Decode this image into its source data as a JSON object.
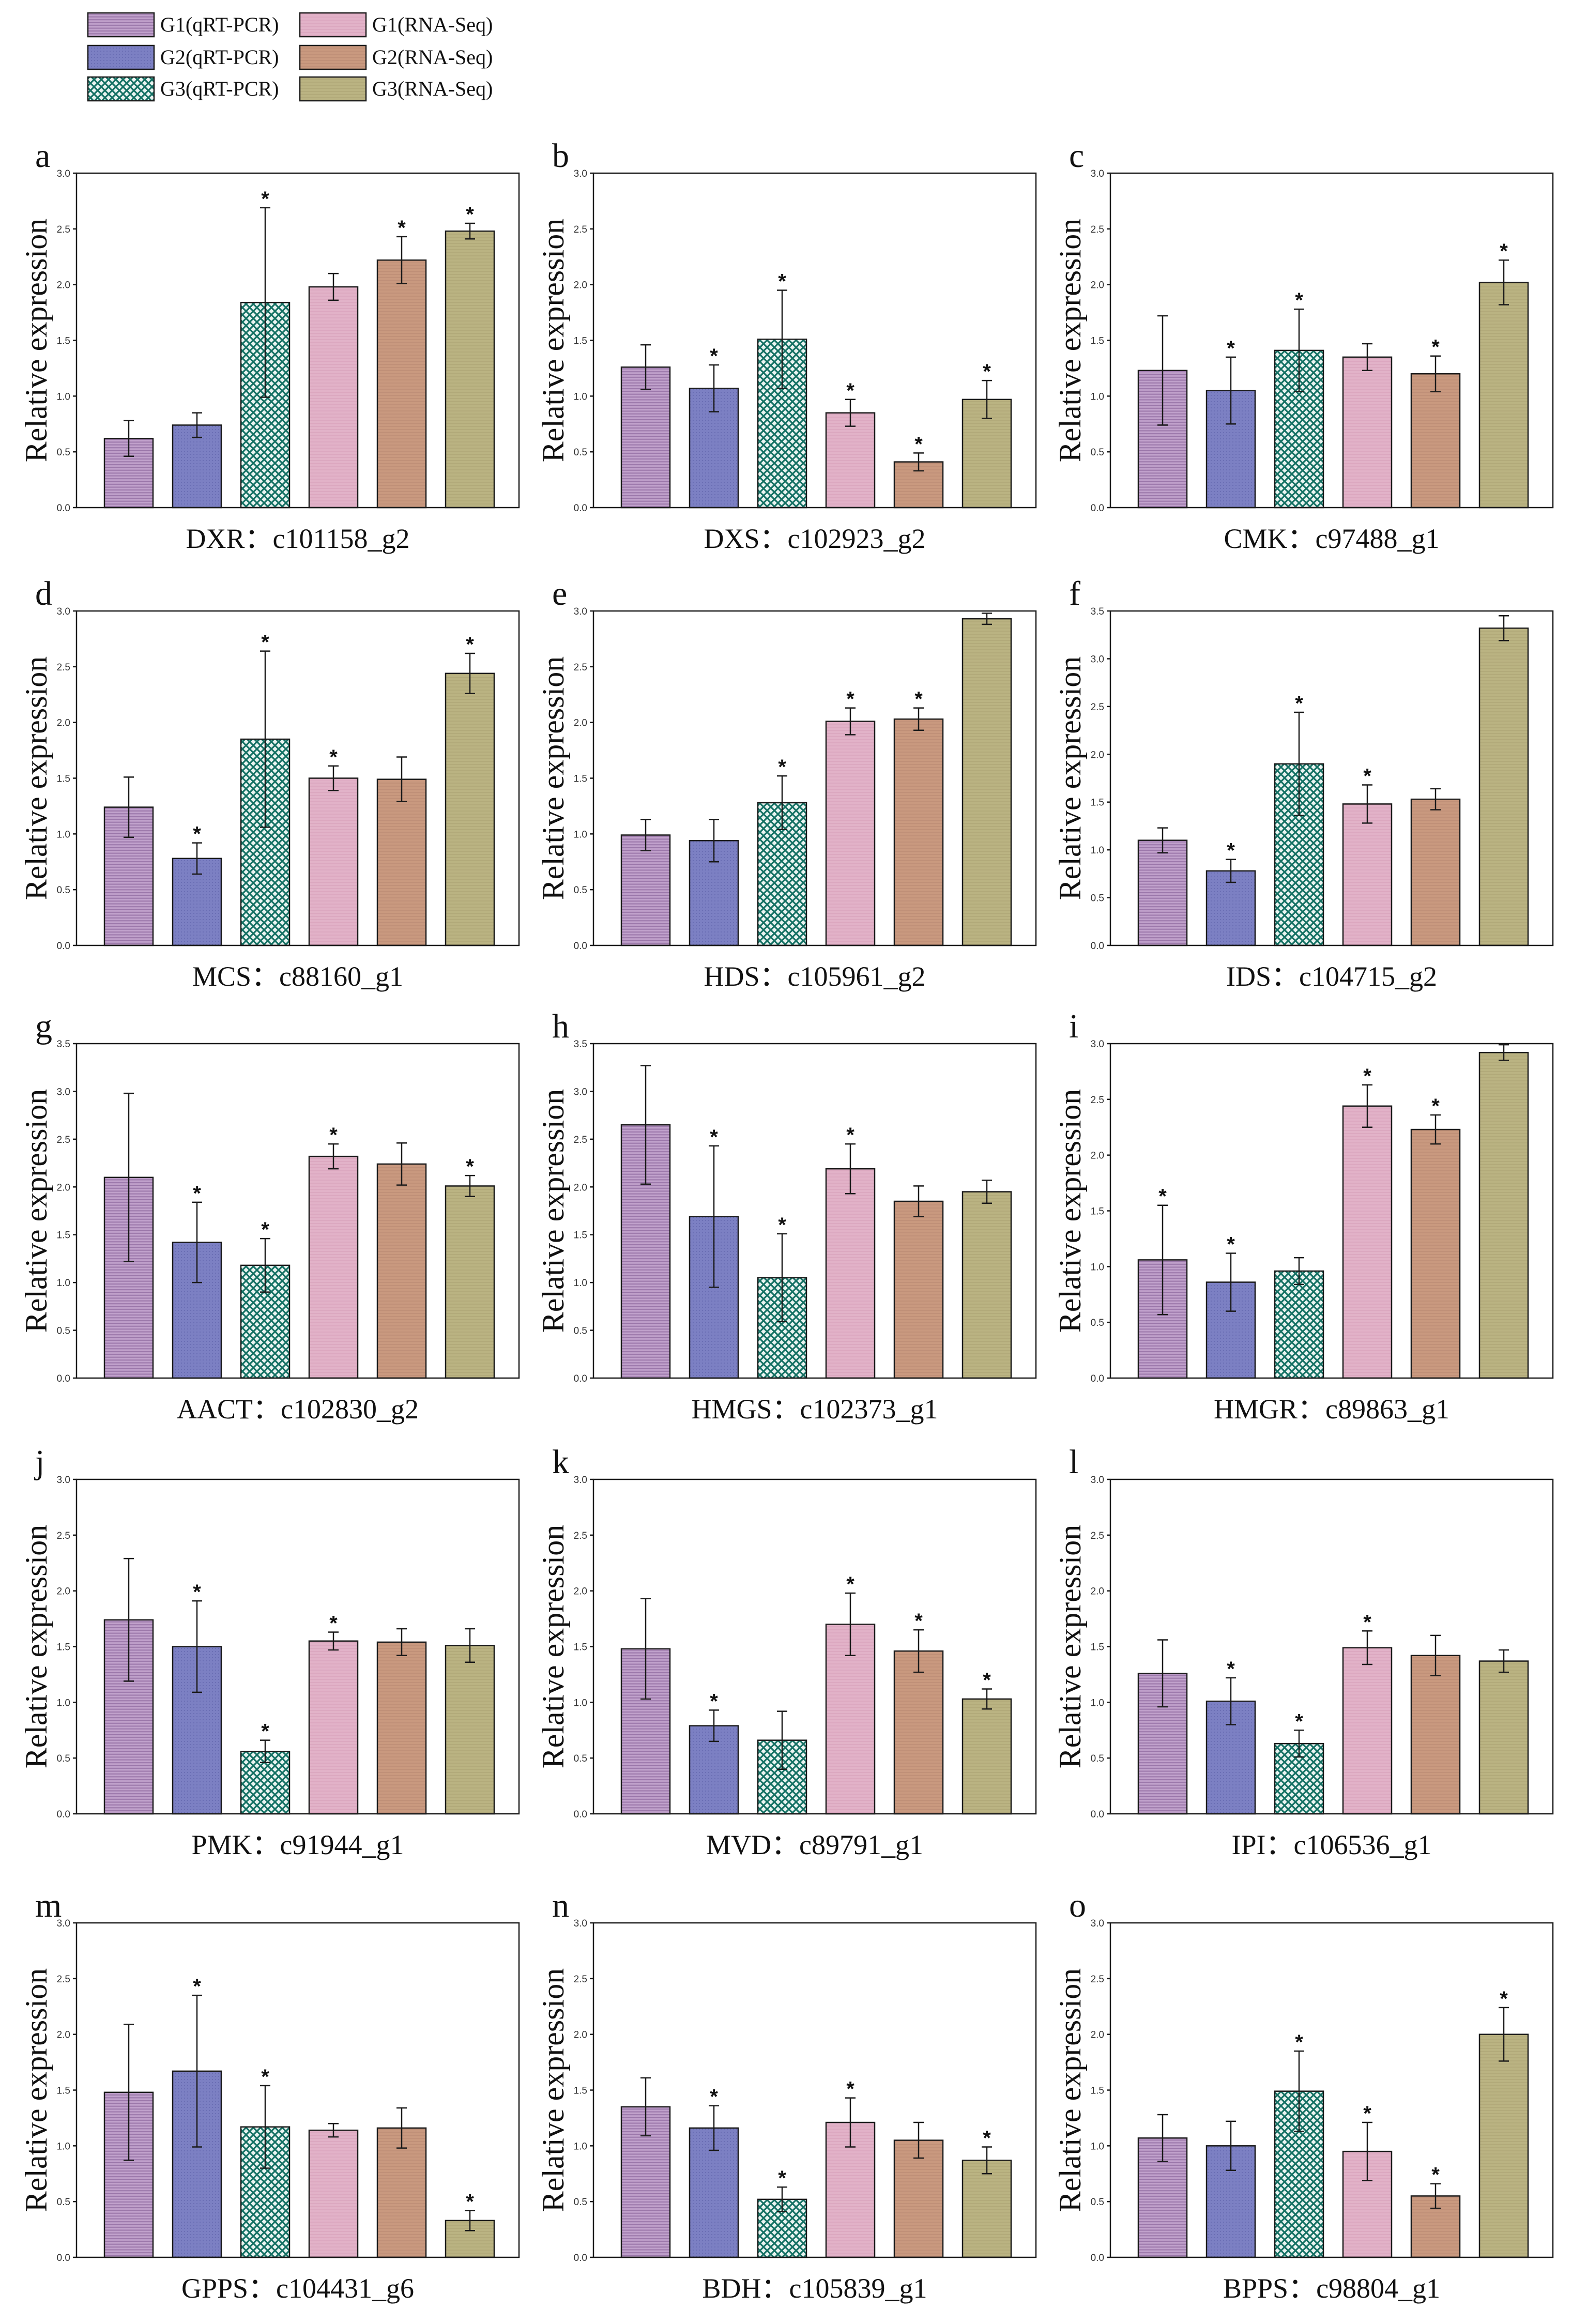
{
  "figure": {
    "ylabel": "Relative expression",
    "legend": [
      {
        "label": "G1(qRT-PCR)",
        "pattern": "p-g1q"
      },
      {
        "label": "G1(RNA-Seq)",
        "pattern": "p-g1r"
      },
      {
        "label": "G2(qRT-PCR)",
        "pattern": "p-g2q"
      },
      {
        "label": "G2(RNA-Seq)",
        "pattern": "p-g2r"
      },
      {
        "label": "G3(qRT-PCR)",
        "pattern": "p-g3q"
      },
      {
        "label": "G3(RNA-Seq)",
        "pattern": "p-g3r"
      }
    ],
    "colors": {
      "g1q": "#b08cbc",
      "g2q": "#7b7fc2",
      "g3q": "#1a7a6e",
      "g1r": "#dca6c0",
      "g2r": "#c8967c",
      "g3r": "#b7b07e"
    },
    "significance_marker": "*"
  },
  "chart_data": [
    {
      "type": "bar",
      "letter": "a",
      "title": "DXR：c101158_g2",
      "ylim": [
        0,
        3.0
      ],
      "yticks": [
        "0.0",
        "0.5",
        "1.0",
        "1.5",
        "2.0",
        "2.5",
        "3.0"
      ],
      "categories": [
        "G1(qRT-PCR)",
        "G2(qRT-PCR)",
        "G3(qRT-PCR)",
        "G1(RNA-Seq)",
        "G2(RNA-Seq)",
        "G3(RNA-Seq)"
      ],
      "values": [
        0.62,
        0.74,
        1.84,
        1.98,
        2.22,
        2.48
      ],
      "errors": [
        0.16,
        0.11,
        0.85,
        0.12,
        0.21,
        0.07
      ],
      "significant": [
        false,
        false,
        true,
        false,
        true,
        true
      ]
    },
    {
      "type": "bar",
      "letter": "b",
      "title": "DXS：c102923_g2",
      "ylim": [
        0,
        3.0
      ],
      "yticks": [
        "0.0",
        "0.5",
        "1.0",
        "1.5",
        "2.0",
        "2.5",
        "3.0"
      ],
      "categories": [
        "G1(qRT-PCR)",
        "G2(qRT-PCR)",
        "G3(qRT-PCR)",
        "G1(RNA-Seq)",
        "G2(RNA-Seq)",
        "G3(RNA-Seq)"
      ],
      "values": [
        1.26,
        1.07,
        1.51,
        0.85,
        0.41,
        0.97
      ],
      "errors": [
        0.2,
        0.21,
        0.44,
        0.12,
        0.08,
        0.17
      ],
      "significant": [
        false,
        true,
        true,
        true,
        true,
        true
      ]
    },
    {
      "type": "bar",
      "letter": "c",
      "title": "CMK：c97488_g1",
      "ylim": [
        0,
        3.0
      ],
      "yticks": [
        "0.0",
        "0.5",
        "1.0",
        "1.5",
        "2.0",
        "2.5",
        "3.0"
      ],
      "categories": [
        "G1(qRT-PCR)",
        "G2(qRT-PCR)",
        "G3(qRT-PCR)",
        "G1(RNA-Seq)",
        "G2(RNA-Seq)",
        "G3(RNA-Seq)"
      ],
      "values": [
        1.23,
        1.05,
        1.41,
        1.35,
        1.2,
        2.02
      ],
      "errors": [
        0.49,
        0.3,
        0.37,
        0.12,
        0.16,
        0.2
      ],
      "significant": [
        false,
        true,
        true,
        false,
        true,
        true
      ]
    },
    {
      "type": "bar",
      "letter": "d",
      "title": "MCS：c88160_g1",
      "ylim": [
        0,
        3.0
      ],
      "yticks": [
        "0.0",
        "0.5",
        "1.0",
        "1.5",
        "2.0",
        "2.5",
        "3.0"
      ],
      "categories": [
        "G1(qRT-PCR)",
        "G2(qRT-PCR)",
        "G3(qRT-PCR)",
        "G1(RNA-Seq)",
        "G2(RNA-Seq)",
        "G3(RNA-Seq)"
      ],
      "values": [
        1.24,
        0.78,
        1.85,
        1.5,
        1.49,
        2.44
      ],
      "errors": [
        0.27,
        0.14,
        0.79,
        0.11,
        0.2,
        0.18
      ],
      "significant": [
        false,
        true,
        true,
        true,
        false,
        true
      ]
    },
    {
      "type": "bar",
      "letter": "e",
      "title": "HDS：c105961_g2",
      "ylim": [
        0,
        3.0
      ],
      "yticks": [
        "0.0",
        "0.5",
        "1.0",
        "1.5",
        "2.0",
        "2.5",
        "3.0"
      ],
      "categories": [
        "G1(qRT-PCR)",
        "G2(qRT-PCR)",
        "G3(qRT-PCR)",
        "G1(RNA-Seq)",
        "G2(RNA-Seq)",
        "G3(RNA-Seq)"
      ],
      "values": [
        0.99,
        0.94,
        1.28,
        2.01,
        2.03,
        2.93
      ],
      "errors": [
        0.14,
        0.19,
        0.24,
        0.12,
        0.1,
        0.05
      ],
      "significant": [
        false,
        false,
        true,
        true,
        true,
        false
      ]
    },
    {
      "type": "bar",
      "letter": "f",
      "title": "IDS：c104715_g2",
      "ylim": [
        0,
        3.5
      ],
      "yticks": [
        "0.0",
        "0.5",
        "1.0",
        "1.5",
        "2.0",
        "2.5",
        "3.0",
        "3.5"
      ],
      "categories": [
        "G1(qRT-PCR)",
        "G2(qRT-PCR)",
        "G3(qRT-PCR)",
        "G1(RNA-Seq)",
        "G2(RNA-Seq)",
        "G3(RNA-Seq)"
      ],
      "values": [
        1.1,
        0.78,
        1.9,
        1.48,
        1.53,
        3.32
      ],
      "errors": [
        0.13,
        0.12,
        0.54,
        0.2,
        0.11,
        0.13
      ],
      "significant": [
        false,
        true,
        true,
        true,
        false,
        false
      ]
    },
    {
      "type": "bar",
      "letter": "g",
      "title": "AACT：c102830_g2",
      "ylim": [
        0,
        3.5
      ],
      "yticks": [
        "0.0",
        "0.5",
        "1.0",
        "1.5",
        "2.0",
        "2.5",
        "3.0",
        "3.5"
      ],
      "categories": [
        "G1(qRT-PCR)",
        "G2(qRT-PCR)",
        "G3(qRT-PCR)",
        "G1(RNA-Seq)",
        "G2(RNA-Seq)",
        "G3(RNA-Seq)"
      ],
      "values": [
        2.1,
        1.42,
        1.18,
        2.32,
        2.24,
        2.01
      ],
      "errors": [
        0.88,
        0.42,
        0.28,
        0.13,
        0.22,
        0.11
      ],
      "significant": [
        false,
        true,
        true,
        true,
        false,
        true
      ]
    },
    {
      "type": "bar",
      "letter": "h",
      "title": "HMGS：c102373_g1",
      "ylim": [
        0,
        3.5
      ],
      "yticks": [
        "0.0",
        "0.5",
        "1.0",
        "1.5",
        "2.0",
        "2.5",
        "3.0",
        "3.5"
      ],
      "categories": [
        "G1(qRT-PCR)",
        "G2(qRT-PCR)",
        "G3(qRT-PCR)",
        "G1(RNA-Seq)",
        "G2(RNA-Seq)",
        "G3(RNA-Seq)"
      ],
      "values": [
        2.65,
        1.69,
        1.05,
        2.19,
        1.85,
        1.95
      ],
      "errors": [
        0.62,
        0.74,
        0.46,
        0.26,
        0.16,
        0.12
      ],
      "significant": [
        false,
        true,
        true,
        true,
        false,
        false
      ]
    },
    {
      "type": "bar",
      "letter": "i",
      "title": "HMGR：c89863_g1",
      "ylim": [
        0,
        3.0
      ],
      "yticks": [
        "0.0",
        "0.5",
        "1.0",
        "1.5",
        "2.0",
        "2.5",
        "3.0"
      ],
      "categories": [
        "G1(qRT-PCR)",
        "G2(qRT-PCR)",
        "G3(qRT-PCR)",
        "G1(RNA-Seq)",
        "G2(RNA-Seq)",
        "G3(RNA-Seq)"
      ],
      "values": [
        1.06,
        0.86,
        0.96,
        2.44,
        2.23,
        2.92
      ],
      "errors": [
        0.49,
        0.26,
        0.12,
        0.19,
        0.13,
        0.07
      ],
      "significant": [
        true,
        true,
        false,
        true,
        true,
        false
      ]
    },
    {
      "type": "bar",
      "letter": "j",
      "title": "PMK：c91944_g1",
      "ylim": [
        0,
        3.0
      ],
      "yticks": [
        "0.0",
        "0.5",
        "1.0",
        "1.5",
        "2.0",
        "2.5",
        "3.0"
      ],
      "categories": [
        "G1(qRT-PCR)",
        "G2(qRT-PCR)",
        "G3(qRT-PCR)",
        "G1(RNA-Seq)",
        "G2(RNA-Seq)",
        "G3(RNA-Seq)"
      ],
      "values": [
        1.74,
        1.5,
        0.56,
        1.55,
        1.54,
        1.51
      ],
      "errors": [
        0.55,
        0.41,
        0.1,
        0.08,
        0.12,
        0.15
      ],
      "significant": [
        false,
        true,
        true,
        true,
        false,
        false
      ]
    },
    {
      "type": "bar",
      "letter": "k",
      "title": "MVD：c89791_g1",
      "ylim": [
        0,
        3.0
      ],
      "yticks": [
        "0.0",
        "0.5",
        "1.0",
        "1.5",
        "2.0",
        "2.5",
        "3.0"
      ],
      "categories": [
        "G1(qRT-PCR)",
        "G2(qRT-PCR)",
        "G3(qRT-PCR)",
        "G1(RNA-Seq)",
        "G2(RNA-Seq)",
        "G3(RNA-Seq)"
      ],
      "values": [
        1.48,
        0.79,
        0.66,
        1.7,
        1.46,
        1.03
      ],
      "errors": [
        0.45,
        0.14,
        0.26,
        0.28,
        0.19,
        0.09
      ],
      "significant": [
        false,
        true,
        false,
        true,
        true,
        true
      ]
    },
    {
      "type": "bar",
      "letter": "l",
      "title": "IPI：c106536_g1",
      "ylim": [
        0,
        3.0
      ],
      "yticks": [
        "0.0",
        "0.5",
        "1.0",
        "1.5",
        "2.0",
        "2.5",
        "3.0"
      ],
      "categories": [
        "G1(qRT-PCR)",
        "G2(qRT-PCR)",
        "G3(qRT-PCR)",
        "G1(RNA-Seq)",
        "G2(RNA-Seq)",
        "G3(RNA-Seq)"
      ],
      "values": [
        1.26,
        1.01,
        0.63,
        1.49,
        1.42,
        1.37
      ],
      "errors": [
        0.3,
        0.21,
        0.12,
        0.15,
        0.18,
        0.1
      ],
      "significant": [
        false,
        true,
        true,
        true,
        false,
        false
      ]
    },
    {
      "type": "bar",
      "letter": "m",
      "title": "GPPS：c104431_g6",
      "ylim": [
        0,
        3.0
      ],
      "yticks": [
        "0.0",
        "0.5",
        "1.0",
        "1.5",
        "2.0",
        "2.5",
        "3.0"
      ],
      "categories": [
        "G1(qRT-PCR)",
        "G2(qRT-PCR)",
        "G3(qRT-PCR)",
        "G1(RNA-Seq)",
        "G2(RNA-Seq)",
        "G3(RNA-Seq)"
      ],
      "values": [
        1.48,
        1.67,
        1.17,
        1.14,
        1.16,
        0.33
      ],
      "errors": [
        0.61,
        0.68,
        0.37,
        0.06,
        0.18,
        0.09
      ],
      "significant": [
        false,
        true,
        true,
        false,
        false,
        true
      ]
    },
    {
      "type": "bar",
      "letter": "n",
      "title": "BDH：c105839_g1",
      "ylim": [
        0,
        3.0
      ],
      "yticks": [
        "0.0",
        "0.5",
        "1.0",
        "1.5",
        "2.0",
        "2.5",
        "3.0"
      ],
      "categories": [
        "G1(qRT-PCR)",
        "G2(qRT-PCR)",
        "G3(qRT-PCR)",
        "G1(RNA-Seq)",
        "G2(RNA-Seq)",
        "G3(RNA-Seq)"
      ],
      "values": [
        1.35,
        1.16,
        0.52,
        1.21,
        1.05,
        0.87
      ],
      "errors": [
        0.26,
        0.2,
        0.11,
        0.22,
        0.16,
        0.12
      ],
      "significant": [
        false,
        true,
        true,
        true,
        false,
        true
      ]
    },
    {
      "type": "bar",
      "letter": "o",
      "title": "BPPS：c98804_g1",
      "ylim": [
        0,
        3.0
      ],
      "yticks": [
        "0.0",
        "0.5",
        "1.0",
        "1.5",
        "2.0",
        "2.5",
        "3.0"
      ],
      "categories": [
        "G1(qRT-PCR)",
        "G2(qRT-PCR)",
        "G3(qRT-PCR)",
        "G1(RNA-Seq)",
        "G2(RNA-Seq)",
        "G3(RNA-Seq)"
      ],
      "values": [
        1.07,
        1.0,
        1.49,
        0.95,
        0.55,
        2.0
      ],
      "errors": [
        0.21,
        0.22,
        0.36,
        0.26,
        0.11,
        0.24
      ],
      "significant": [
        false,
        false,
        true,
        true,
        true,
        true
      ]
    }
  ]
}
